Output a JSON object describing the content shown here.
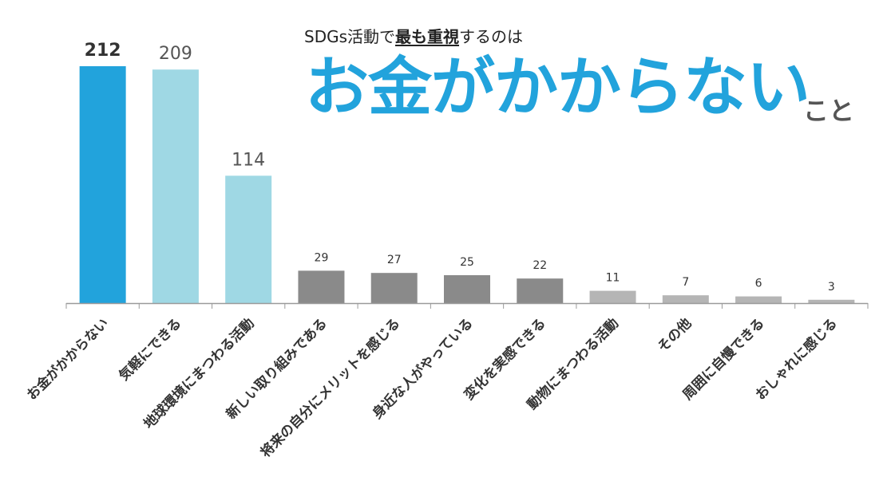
{
  "header": {
    "subtitle_pre": "SDGs活動で",
    "subtitle_emph": "最も重視",
    "subtitle_post": "するのは",
    "headline": "お金がかからない",
    "headline_suffix": "こと"
  },
  "colors": {
    "highlight": "#22a3dc",
    "light_blue": "#9fd8e4",
    "dark_gray": "#8a8a8a",
    "light_gray": "#b5b5b5",
    "axis": "#9a9a9a"
  },
  "chart_data": {
    "type": "bar",
    "title": "SDGs活動で最も重視するのは お金がかからない こと",
    "xlabel": "",
    "ylabel": "",
    "ylim": [
      0,
      212
    ],
    "grid": false,
    "categories": [
      "お金がかからない",
      "気軽にできる",
      "地球環境にまつわる活動",
      "新しい取り組みである",
      "将来の自分にメリットを感じる",
      "身近な人がやっている",
      "変化を実感できる",
      "動物にまつわる活動",
      "その他",
      "周囲に自慢できる",
      "おしゃれに感じる"
    ],
    "values": [
      212,
      209,
      114,
      29,
      27,
      25,
      22,
      11,
      7,
      6,
      3
    ],
    "bar_colors": [
      "#22a3dc",
      "#9fd8e4",
      "#9fd8e4",
      "#8a8a8a",
      "#8a8a8a",
      "#8a8a8a",
      "#8a8a8a",
      "#b5b5b5",
      "#b5b5b5",
      "#b5b5b5",
      "#b5b5b5"
    ]
  }
}
